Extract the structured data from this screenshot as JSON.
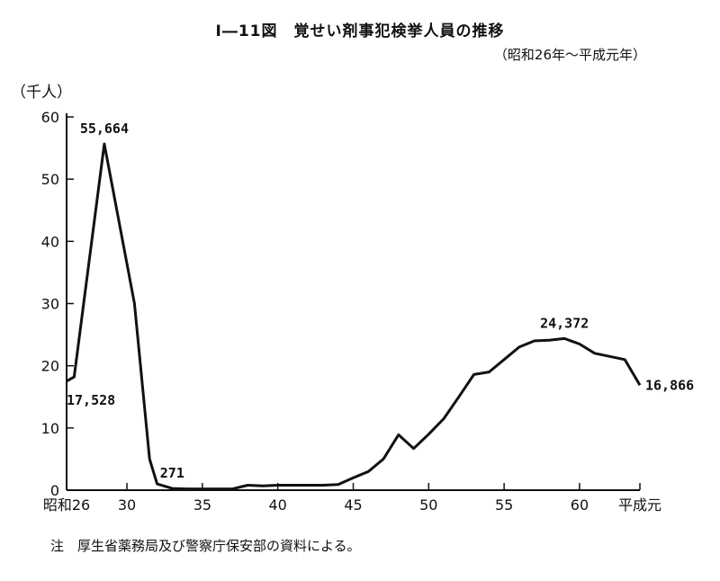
{
  "chart_data": {
    "type": "line",
    "title": "Ⅰ―11図　覚せい剤事犯検挙人員の推移",
    "subtitle": "（昭和26年～平成元年）",
    "ylabel": "（千人）",
    "xlabel": "",
    "ylim": [
      0,
      60
    ],
    "xlim": [
      26,
      64
    ],
    "grid": false,
    "legend": "none",
    "y_ticks": [
      0,
      10,
      20,
      30,
      40,
      50,
      60
    ],
    "x_ticks": [
      {
        "x": 26,
        "label": "昭和26"
      },
      {
        "x": 30,
        "label": "30"
      },
      {
        "x": 35,
        "label": "35"
      },
      {
        "x": 40,
        "label": "40"
      },
      {
        "x": 45,
        "label": "45"
      },
      {
        "x": 50,
        "label": "50"
      },
      {
        "x": 55,
        "label": "55"
      },
      {
        "x": 60,
        "label": "60"
      },
      {
        "x": 64,
        "label": "平成元"
      }
    ],
    "series": [
      {
        "x": [
          26,
          26.5,
          28.5,
          30.5,
          31.5,
          32,
          33,
          34,
          35,
          36,
          37,
          38,
          39,
          40,
          41,
          42,
          43,
          44,
          45,
          46,
          47,
          48,
          49,
          50,
          51,
          52,
          53,
          54,
          55,
          56,
          57,
          58,
          59,
          60,
          61,
          62,
          63,
          64
        ],
        "values": [
          17.528,
          18.2,
          55.664,
          30.0,
          5.0,
          1.0,
          0.271,
          0.2,
          0.2,
          0.2,
          0.2,
          0.8,
          0.7,
          0.8,
          0.8,
          0.8,
          0.8,
          0.9,
          2.0,
          3.0,
          5.0,
          8.9,
          6.7,
          9.0,
          11.5,
          15.0,
          18.6,
          19.0,
          21.0,
          23.0,
          24.0,
          24.1,
          24.372,
          23.5,
          22.0,
          21.5,
          21.0,
          16.866
        ]
      }
    ],
    "annotations": [
      {
        "text": "55,664",
        "x": 28.5,
        "y": 55.664,
        "pos": "above"
      },
      {
        "text": "17,528",
        "x": 26,
        "y": 17.528,
        "pos": "below-right"
      },
      {
        "text": "271",
        "x": 33,
        "y": 0.271,
        "pos": "above"
      },
      {
        "text": "24,372",
        "x": 59,
        "y": 24.372,
        "pos": "above"
      },
      {
        "text": "16,866",
        "x": 64,
        "y": 16.866,
        "pos": "right"
      }
    ]
  },
  "note": "注　厚生省薬務局及び警察庁保安部の資料による。"
}
